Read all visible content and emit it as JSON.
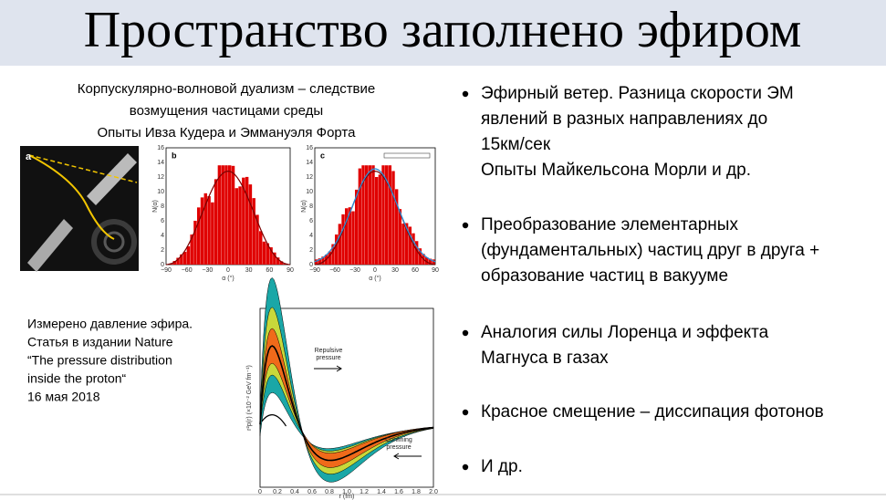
{
  "title": "Пространство заполнено эфиром",
  "caption": [
    "Корпускулярно-волновой дуализм – следствие",
    "возмущения частицами среды",
    "Опыты Ивза Кудера и Эммануэля Форта"
  ],
  "figure_1": {
    "panels": [
      "a",
      "b",
      "c"
    ],
    "y_label": "N(α)",
    "x_label": "α (°)",
    "x_ticks": [
      "−90",
      "−60",
      "−30",
      "0",
      "30",
      "60",
      "90"
    ],
    "y_ticks": [
      "0",
      "2",
      "4",
      "6",
      "8",
      "10",
      "12",
      "14",
      "16"
    ]
  },
  "note": [
    "Измерено давление эфира.",
    "Статья в издании Nature",
    "“The pressure distribution",
    "inside the proton“",
    "16 мая 2018"
  ],
  "figure_2": {
    "y_label": "r²p(r) (×10⁻² GeV fm⁻¹)",
    "x_label": "r (fm)",
    "x_ticks": [
      "0",
      "0.2",
      "0.4",
      "0.6",
      "0.8",
      "1.0",
      "1.2",
      "1.4",
      "1.6",
      "1.8",
      "2.0"
    ],
    "annotations": [
      [
        "Repulsive",
        "pressure"
      ],
      [
        "Confining",
        "pressure"
      ]
    ]
  },
  "bullets": [
    [
      "Эфирный ветер. Разница скорости ЭМ",
      "явлений в разных направлениях до",
      "15км/сек",
      "Опыты Майкельсона Морли и др."
    ],
    [
      "Преобразование элементарных",
      "(фундаментальных) частиц друг в друга +",
      "образование частиц в вакууме"
    ],
    [
      "Аналогия силы Лоренца и эффекта",
      "Магнуса в газах"
    ],
    [
      "Красное смещение – диссипация фотонов"
    ],
    [
      "И др."
    ]
  ]
}
